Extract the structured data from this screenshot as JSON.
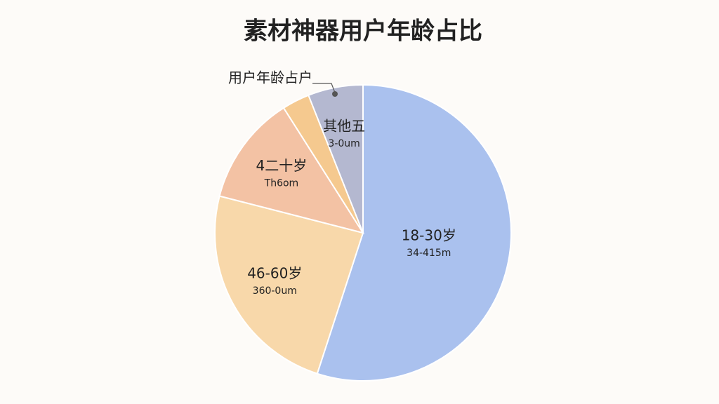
{
  "chart_data": {
    "type": "pie",
    "title": "素材神器用户年龄占比",
    "callout": "用户年龄占户",
    "categories": [
      "18-30岁",
      "46-60岁",
      "4二十岁",
      "",
      "其他五"
    ],
    "sublabels": [
      "34-415m",
      "360-0um",
      "Th6om",
      "",
      "3-0um"
    ],
    "values": [
      55,
      24,
      12,
      3,
      6
    ],
    "colors": [
      "#aac1ee",
      "#f8d8aa",
      "#f3c2a4",
      "#f5c98f",
      "#b4b8d0"
    ],
    "start_angle": 0,
    "direction": "clockwise"
  }
}
